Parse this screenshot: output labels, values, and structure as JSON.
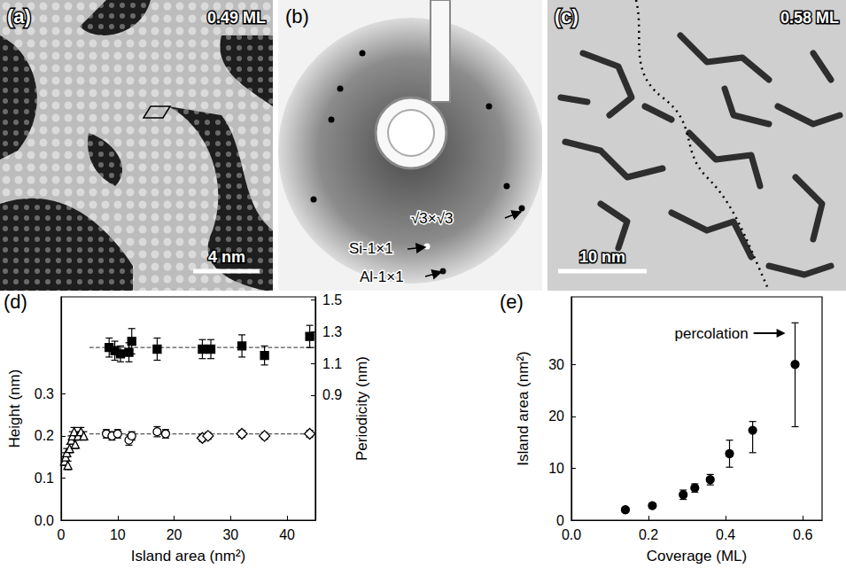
{
  "chart_data": [
    {
      "type": "image",
      "label": "(a)",
      "coverage": "0.49 ML",
      "scale_bar": "4 nm"
    },
    {
      "type": "image",
      "label": "(b)",
      "spots": [
        "√3×√3",
        "Si-1×1",
        "Al-1×1"
      ]
    },
    {
      "type": "image",
      "label": "(c)",
      "coverage": "0.58 ML",
      "scale_bar": "10 nm"
    },
    {
      "type": "scatter",
      "label": "(d)",
      "x_label": "Island area (nm²)",
      "y_label": "Height (nm)",
      "y2_label": "Periodicity (nm)",
      "xlim": [
        0,
        45
      ],
      "xticks": [
        0,
        10,
        20,
        30,
        40
      ],
      "ylim": [
        0,
        0.53
      ],
      "yticks": [
        {
          "value": 0,
          "label": "0.0"
        },
        0.1,
        0.2,
        0.3
      ],
      "y2lim": [
        0.11,
        1.52
      ],
      "y2ticks": [
        0.9,
        1.1,
        1.3,
        1.5
      ],
      "grid": false,
      "series": [
        {
          "type": "line",
          "line_style": "dashed",
          "color": "#555555",
          "x": [
            5,
            45
          ],
          "values": [
            0.205,
            0.205
          ]
        },
        {
          "type": "line",
          "line_style": "dashed",
          "color": "#555555",
          "axis": "y2",
          "x": [
            5,
            45
          ],
          "values": [
            1.2,
            1.2
          ]
        },
        {
          "type": "scatter",
          "marker": "open-triangle",
          "color": "#000000",
          "x": [
            0.6,
            0.8,
            1.0,
            1.2,
            1.5,
            1.8,
            2.0,
            2.3,
            2.5,
            3.0,
            3.5,
            4.0
          ],
          "values": [
            0.14,
            0.15,
            0.16,
            0.13,
            0.17,
            0.19,
            0.2,
            0.21,
            0.18,
            0.2,
            0.21,
            0.2
          ],
          "errors": [
            0.01,
            0.01,
            0.01,
            0.01,
            0.01,
            0.01,
            0.01,
            0.01,
            0.01,
            0.01,
            0.01,
            0.01
          ]
        },
        {
          "type": "scatter",
          "marker": "open-circle",
          "color": "#000000",
          "x": [
            8,
            9,
            10,
            12,
            12.5,
            17,
            18.5
          ],
          "values": [
            0.205,
            0.2,
            0.205,
            0.19,
            0.2,
            0.21,
            0.205
          ],
          "errors": [
            0.01,
            0.01,
            0.01,
            0.012,
            0.01,
            0.012,
            0.01
          ]
        },
        {
          "type": "scatter",
          "marker": "open-diamond",
          "color": "#000000",
          "x": [
            25,
            26,
            32,
            36,
            44
          ],
          "values": [
            0.195,
            0.2,
            0.205,
            0.2,
            0.205
          ],
          "errors": [
            0.008,
            0.008,
            0.008,
            0.008,
            0.008
          ]
        },
        {
          "type": "scatter",
          "marker": "square",
          "color": "#000000",
          "axis": "y2",
          "x": [
            8.5,
            9.5,
            10.5,
            12,
            12.5,
            17,
            25,
            26.5,
            32,
            36,
            44
          ],
          "values": [
            1.2,
            1.18,
            1.16,
            1.17,
            1.24,
            1.19,
            1.19,
            1.19,
            1.21,
            1.15,
            1.27
          ],
          "errors": [
            0.06,
            0.06,
            0.05,
            0.06,
            0.08,
            0.07,
            0.06,
            0.06,
            0.07,
            0.06,
            0.07
          ]
        }
      ]
    },
    {
      "type": "scatter",
      "label": "(e)",
      "x_label": "Coverage (ML)",
      "y_label": "Island area (nm²)",
      "xlim": [
        0,
        0.65
      ],
      "xticks": [
        {
          "value": 0,
          "label": "0.0"
        },
        0.2,
        0.4,
        0.6
      ],
      "ylim": [
        0,
        43
      ],
      "yticks": [
        0,
        10,
        20,
        30
      ],
      "grid": false,
      "annotation": {
        "text": "percolation",
        "x": 0.555,
        "y": 36
      },
      "series": [
        {
          "type": "scatter",
          "marker": "circle",
          "color": "#000000",
          "x": [
            0.14,
            0.21,
            0.29,
            0.32,
            0.36,
            0.41,
            0.47,
            0.58
          ],
          "values": [
            2.0,
            2.8,
            4.9,
            6.2,
            7.8,
            12.8,
            17.3,
            30.0
          ],
          "error_lower": [
            1.7,
            2.4,
            4.0,
            5.4,
            6.8,
            10.2,
            13.0,
            18.0
          ],
          "error_upper": [
            2.3,
            3.2,
            5.8,
            7.0,
            8.8,
            15.4,
            19.0,
            38.0
          ]
        }
      ]
    }
  ]
}
